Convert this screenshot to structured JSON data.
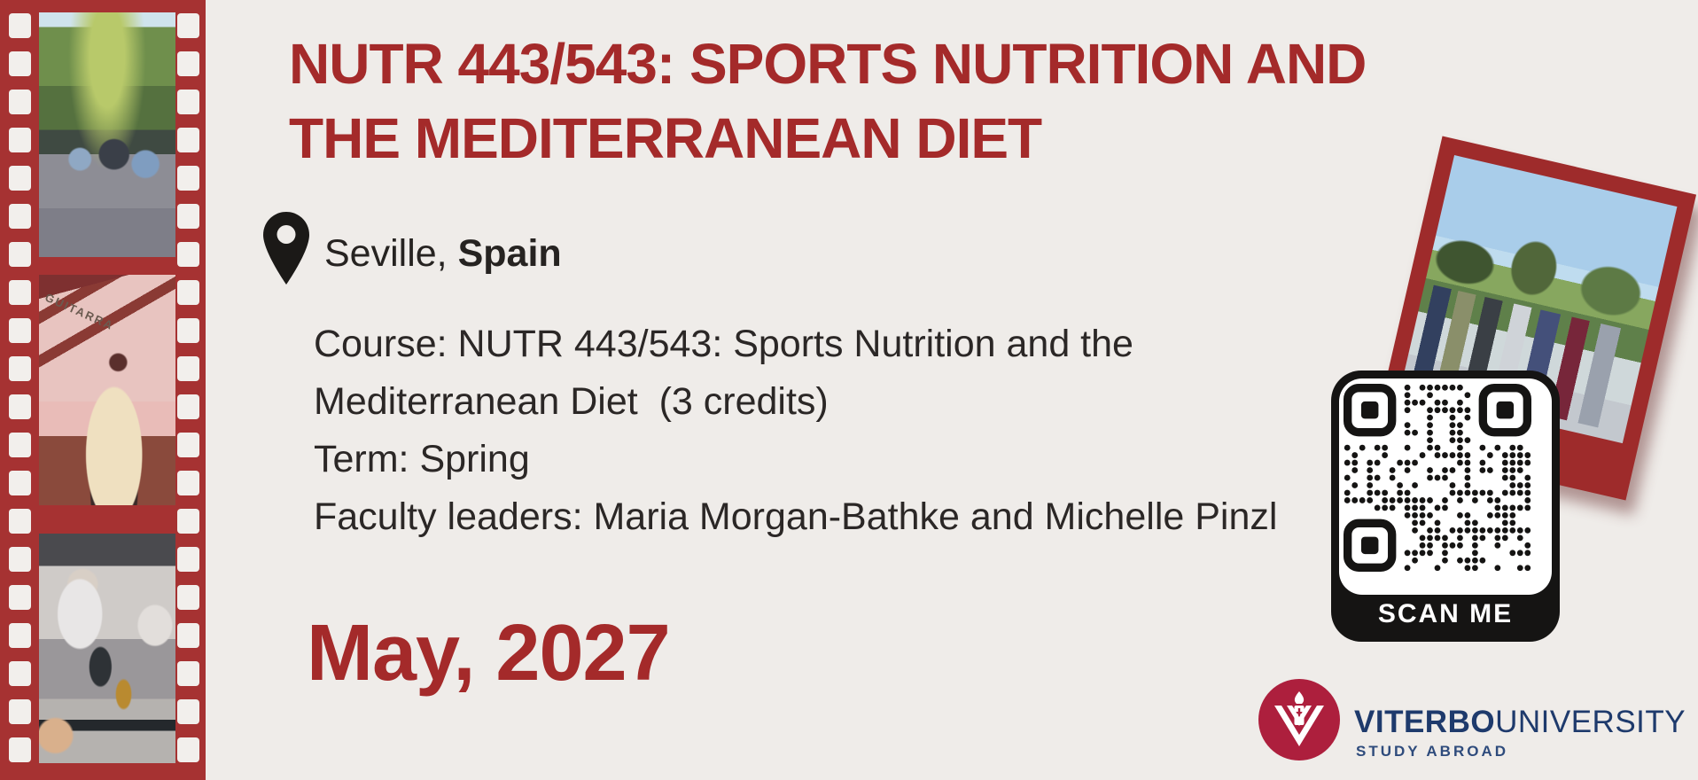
{
  "colors": {
    "background": "#EFECE9",
    "maroon_text": "#A42A2A",
    "filmstrip_red": "#A63232",
    "polaroid_red": "#9E2B2B",
    "qr_black": "#151413",
    "body_text": "#2B2726",
    "navy": "#1E3A6C",
    "logo_red": "#AD1F3D"
  },
  "title": {
    "line1": "NUTR 443/543: SPORTS NUTRITION AND",
    "line2": "THE MEDITERRANEAN DIET"
  },
  "location": {
    "icon": "location-pin-icon",
    "city": "Seville,",
    "country": "Spain"
  },
  "details": {
    "line1": "Course: NUTR 443/543: Sports Nutrition and the",
    "line2": "Mediterranean Diet  (3 credits)",
    "line3": "Term: Spring",
    "line4": "Faculty leaders: Maria Morgan-Bathke and Michelle Pinzl"
  },
  "date": "May, 2027",
  "qr": {
    "label": "SCAN ME"
  },
  "filmstrip": {
    "photo2_wall_text": "GUITARRA"
  },
  "branding": {
    "name_bold": "VITERBO",
    "name_light": "UNIVERSITY",
    "tagline": "STUDY ABROAD"
  }
}
